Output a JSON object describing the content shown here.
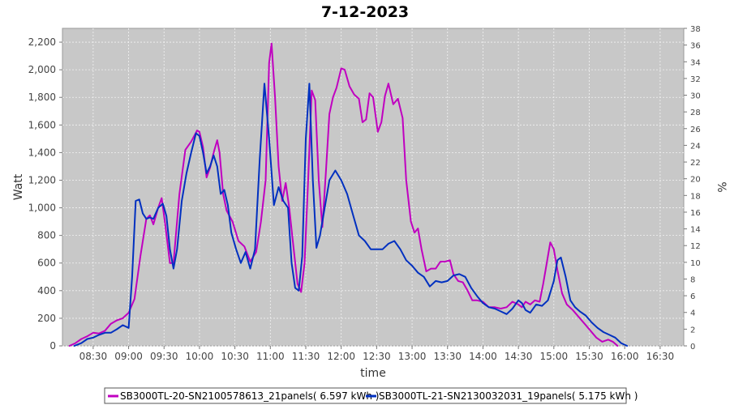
{
  "chart_data": {
    "type": "line",
    "title": "7-12-2023",
    "xlabel": "time",
    "ylabel": "Watt",
    "y2label": "%",
    "xlim": [
      "08:04",
      "16:50"
    ],
    "ylim": [
      0,
      2300
    ],
    "y2lim": [
      0,
      38
    ],
    "x_ticks": [
      "08:30",
      "09:00",
      "09:30",
      "10:00",
      "10:30",
      "11:00",
      "11:30",
      "12:00",
      "12:30",
      "13:00",
      "13:30",
      "14:00",
      "14:30",
      "15:00",
      "15:30",
      "16:00",
      "16:30"
    ],
    "y_ticks": [
      "0",
      "200",
      "400",
      "600",
      "800",
      "1,000",
      "1,200",
      "1,400",
      "1,600",
      "1,800",
      "2,000",
      "2,200"
    ],
    "y2_ticks": [
      "0",
      "2",
      "4",
      "6",
      "8",
      "10",
      "12",
      "14",
      "16",
      "18",
      "20",
      "22",
      "24",
      "26",
      "28",
      "30",
      "32",
      "34",
      "36",
      "38"
    ],
    "grid": true,
    "legend": "bottom",
    "series": [
      {
        "name": "SB3000TL-20-SN2100578613_21panels( 6.597 kWh )",
        "color": "#c000c0",
        "points": [
          [
            "08:10",
            0
          ],
          [
            "08:15",
            20
          ],
          [
            "08:20",
            50
          ],
          [
            "08:25",
            70
          ],
          [
            "08:30",
            95
          ],
          [
            "08:35",
            90
          ],
          [
            "08:40",
            110
          ],
          [
            "08:45",
            160
          ],
          [
            "08:50",
            185
          ],
          [
            "08:55",
            200
          ],
          [
            "09:00",
            240
          ],
          [
            "09:05",
            340
          ],
          [
            "09:10",
            650
          ],
          [
            "09:15",
            920
          ],
          [
            "09:18",
            945
          ],
          [
            "09:21",
            880
          ],
          [
            "09:25",
            1000
          ],
          [
            "09:28",
            1070
          ],
          [
            "09:31",
            880
          ],
          [
            "09:35",
            600
          ],
          [
            "09:38",
            600
          ],
          [
            "09:43",
            1100
          ],
          [
            "09:48",
            1420
          ],
          [
            "09:53",
            1480
          ],
          [
            "09:58",
            1560
          ],
          [
            "10:00",
            1550
          ],
          [
            "10:03",
            1440
          ],
          [
            "10:06",
            1220
          ],
          [
            "10:09",
            1290
          ],
          [
            "10:12",
            1400
          ],
          [
            "10:15",
            1490
          ],
          [
            "10:17",
            1400
          ],
          [
            "10:20",
            1100
          ],
          [
            "10:23",
            980
          ],
          [
            "10:28",
            900
          ],
          [
            "10:33",
            760
          ],
          [
            "10:38",
            720
          ],
          [
            "10:43",
            610
          ],
          [
            "10:48",
            680
          ],
          [
            "10:52",
            900
          ],
          [
            "10:56",
            1200
          ],
          [
            "10:59",
            2050
          ],
          [
            "11:01",
            2190
          ],
          [
            "11:04",
            1800
          ],
          [
            "11:07",
            1300
          ],
          [
            "11:10",
            1050
          ],
          [
            "11:13",
            1180
          ],
          [
            "11:16",
            1000
          ],
          [
            "11:19",
            760
          ],
          [
            "11:23",
            450
          ],
          [
            "11:26",
            390
          ],
          [
            "11:29",
            600
          ],
          [
            "11:32",
            1200
          ],
          [
            "11:35",
            1850
          ],
          [
            "11:38",
            1780
          ],
          [
            "11:41",
            1200
          ],
          [
            "11:44",
            860
          ],
          [
            "11:47",
            1250
          ],
          [
            "11:50",
            1680
          ],
          [
            "11:53",
            1800
          ],
          [
            "11:56",
            1870
          ],
          [
            "12:00",
            2010
          ],
          [
            "12:03",
            2000
          ],
          [
            "12:07",
            1880
          ],
          [
            "12:11",
            1820
          ],
          [
            "12:15",
            1790
          ],
          [
            "12:18",
            1620
          ],
          [
            "12:21",
            1640
          ],
          [
            "12:24",
            1830
          ],
          [
            "12:27",
            1800
          ],
          [
            "12:31",
            1550
          ],
          [
            "12:34",
            1620
          ],
          [
            "12:37",
            1810
          ],
          [
            "12:40",
            1900
          ],
          [
            "12:44",
            1750
          ],
          [
            "12:48",
            1790
          ],
          [
            "12:52",
            1650
          ],
          [
            "12:55",
            1200
          ],
          [
            "12:59",
            900
          ],
          [
            "13:02",
            820
          ],
          [
            "13:05",
            850
          ],
          [
            "13:08",
            700
          ],
          [
            "13:12",
            540
          ],
          [
            "13:16",
            560
          ],
          [
            "13:20",
            560
          ],
          [
            "13:24",
            610
          ],
          [
            "13:28",
            610
          ],
          [
            "13:32",
            620
          ],
          [
            "13:35",
            520
          ],
          [
            "13:39",
            470
          ],
          [
            "13:43",
            460
          ],
          [
            "13:47",
            400
          ],
          [
            "13:51",
            330
          ],
          [
            "13:55",
            330
          ],
          [
            "14:00",
            320
          ],
          [
            "14:05",
            280
          ],
          [
            "14:10",
            280
          ],
          [
            "14:15",
            270
          ],
          [
            "14:20",
            280
          ],
          [
            "14:25",
            320
          ],
          [
            "14:30",
            300
          ],
          [
            "14:33",
            280
          ],
          [
            "14:36",
            320
          ],
          [
            "14:40",
            300
          ],
          [
            "14:44",
            330
          ],
          [
            "14:48",
            320
          ],
          [
            "14:51",
            450
          ],
          [
            "14:54",
            600
          ],
          [
            "14:57",
            750
          ],
          [
            "15:00",
            700
          ],
          [
            "15:03",
            550
          ],
          [
            "15:07",
            380
          ],
          [
            "15:11",
            300
          ],
          [
            "15:16",
            260
          ],
          [
            "15:21",
            210
          ],
          [
            "15:26",
            160
          ],
          [
            "15:31",
            110
          ],
          [
            "15:36",
            60
          ],
          [
            "15:41",
            30
          ],
          [
            "15:46",
            45
          ],
          [
            "15:50",
            30
          ],
          [
            "15:54",
            0
          ]
        ]
      },
      {
        "name": "SB3000TL-21-SN2130032031_19panels( 5.175 kWh )",
        "color": "#0030c0",
        "points": [
          [
            "08:14",
            0
          ],
          [
            "08:20",
            20
          ],
          [
            "08:25",
            50
          ],
          [
            "08:30",
            60
          ],
          [
            "08:35",
            80
          ],
          [
            "08:40",
            95
          ],
          [
            "08:45",
            95
          ],
          [
            "08:50",
            120
          ],
          [
            "08:55",
            150
          ],
          [
            "09:00",
            130
          ],
          [
            "09:03",
            500
          ],
          [
            "09:06",
            1050
          ],
          [
            "09:09",
            1060
          ],
          [
            "09:12",
            960
          ],
          [
            "09:15",
            920
          ],
          [
            "09:18",
            930
          ],
          [
            "09:21",
            920
          ],
          [
            "09:25",
            1000
          ],
          [
            "09:29",
            1030
          ],
          [
            "09:32",
            940
          ],
          [
            "09:35",
            700
          ],
          [
            "09:38",
            560
          ],
          [
            "09:41",
            700
          ],
          [
            "09:45",
            1050
          ],
          [
            "09:49",
            1250
          ],
          [
            "09:53",
            1400
          ],
          [
            "09:57",
            1540
          ],
          [
            "10:00",
            1520
          ],
          [
            "10:03",
            1400
          ],
          [
            "10:06",
            1250
          ],
          [
            "10:09",
            1300
          ],
          [
            "10:12",
            1380
          ],
          [
            "10:15",
            1300
          ],
          [
            "10:18",
            1100
          ],
          [
            "10:21",
            1130
          ],
          [
            "10:24",
            1020
          ],
          [
            "10:27",
            820
          ],
          [
            "10:31",
            700
          ],
          [
            "10:35",
            600
          ],
          [
            "10:39",
            680
          ],
          [
            "10:43",
            560
          ],
          [
            "10:47",
            700
          ],
          [
            "10:51",
            1350
          ],
          [
            "10:55",
            1900
          ],
          [
            "10:59",
            1500
          ],
          [
            "11:03",
            1020
          ],
          [
            "11:07",
            1150
          ],
          [
            "11:11",
            1050
          ],
          [
            "11:15",
            1000
          ],
          [
            "11:18",
            600
          ],
          [
            "11:21",
            420
          ],
          [
            "11:24",
            400
          ],
          [
            "11:27",
            650
          ],
          [
            "11:30",
            1500
          ],
          [
            "11:33",
            1900
          ],
          [
            "11:36",
            1200
          ],
          [
            "11:39",
            710
          ],
          [
            "11:42",
            800
          ],
          [
            "11:46",
            1000
          ],
          [
            "11:50",
            1200
          ],
          [
            "11:55",
            1270
          ],
          [
            "12:00",
            1200
          ],
          [
            "12:05",
            1100
          ],
          [
            "12:10",
            950
          ],
          [
            "12:15",
            800
          ],
          [
            "12:20",
            760
          ],
          [
            "12:25",
            700
          ],
          [
            "12:30",
            700
          ],
          [
            "12:35",
            700
          ],
          [
            "12:40",
            740
          ],
          [
            "12:45",
            760
          ],
          [
            "12:50",
            700
          ],
          [
            "12:55",
            620
          ],
          [
            "13:00",
            580
          ],
          [
            "13:05",
            530
          ],
          [
            "13:10",
            500
          ],
          [
            "13:15",
            430
          ],
          [
            "13:20",
            470
          ],
          [
            "13:25",
            460
          ],
          [
            "13:30",
            470
          ],
          [
            "13:35",
            510
          ],
          [
            "13:40",
            520
          ],
          [
            "13:45",
            500
          ],
          [
            "13:50",
            420
          ],
          [
            "13:55",
            360
          ],
          [
            "14:00",
            310
          ],
          [
            "14:05",
            280
          ],
          [
            "14:10",
            270
          ],
          [
            "14:15",
            250
          ],
          [
            "14:20",
            230
          ],
          [
            "14:25",
            270
          ],
          [
            "14:30",
            330
          ],
          [
            "14:33",
            310
          ],
          [
            "14:36",
            260
          ],
          [
            "14:40",
            240
          ],
          [
            "14:45",
            300
          ],
          [
            "14:50",
            290
          ],
          [
            "14:55",
            330
          ],
          [
            "15:00",
            470
          ],
          [
            "15:03",
            620
          ],
          [
            "15:06",
            640
          ],
          [
            "15:10",
            500
          ],
          [
            "15:14",
            330
          ],
          [
            "15:18",
            280
          ],
          [
            "15:22",
            250
          ],
          [
            "15:27",
            220
          ],
          [
            "15:32",
            170
          ],
          [
            "15:37",
            130
          ],
          [
            "15:42",
            100
          ],
          [
            "15:47",
            80
          ],
          [
            "15:52",
            60
          ],
          [
            "15:57",
            20
          ],
          [
            "16:02",
            0
          ]
        ]
      }
    ]
  }
}
